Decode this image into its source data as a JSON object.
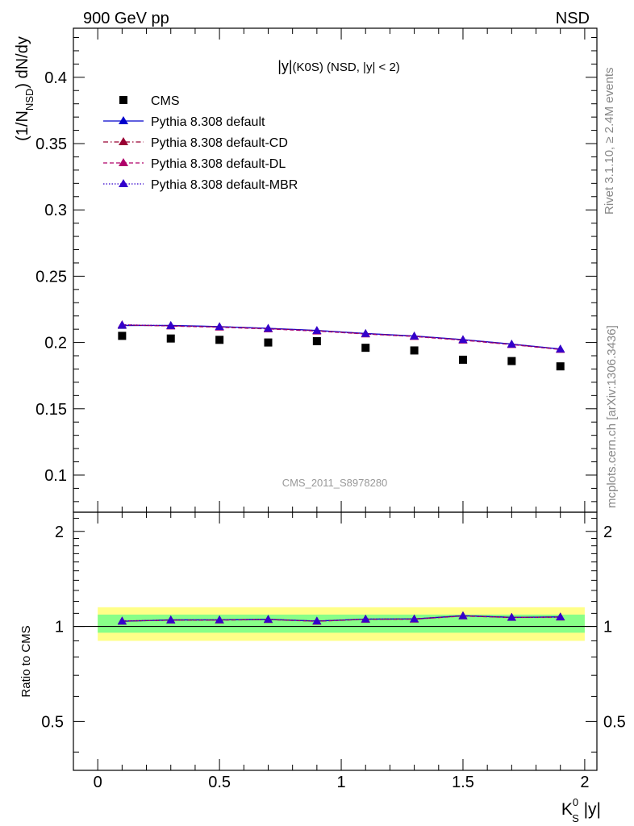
{
  "header": {
    "left": "900 GeV pp",
    "right": "NSD"
  },
  "side_labels": {
    "top": "Rivet 3.1.10, ≥ 2.4M events",
    "bottom": "mcplots.cern.ch [arXiv:1306.3436]"
  },
  "chart_data": [
    {
      "type": "scatter",
      "title_main": "|y|",
      "title_rest": "(K0S) (NSD, |y| < 2)",
      "watermark": "CMS_2011_S8978280",
      "ylabel": "(1/N_NSD) dN/dy",
      "ylabel_parts": {
        "pre": "(1/N",
        "sub": "NSD",
        "post": ") dN/dy"
      },
      "xlim": [
        -0.1,
        2.05
      ],
      "ylim": [
        0.072,
        0.437
      ],
      "yticks": [
        0.1,
        0.15,
        0.2,
        0.25,
        0.3,
        0.35,
        0.4
      ],
      "ytick_labels": [
        "0.1",
        "0.15",
        "0.2",
        "0.25",
        "0.3",
        "0.35",
        "0.4"
      ],
      "legend_position": "top-left",
      "x": [
        0.1,
        0.3,
        0.5,
        0.7,
        0.9,
        1.1,
        1.3,
        1.5,
        1.7,
        1.9
      ],
      "series": [
        {
          "name": "CMS",
          "color": "#000000",
          "marker": "square",
          "line": "none",
          "values": [
            0.205,
            0.203,
            0.202,
            0.2,
            0.201,
            0.196,
            0.194,
            0.187,
            0.186,
            0.182
          ]
        },
        {
          "name": "Pythia 8.308 default",
          "color": "#0000cc",
          "marker": "triangle",
          "line": "solid",
          "values": [
            0.2128,
            0.2129,
            0.212,
            0.2107,
            0.2091,
            0.2068,
            0.2049,
            0.2022,
            0.1988,
            0.1951
          ]
        },
        {
          "name": "Pythia 8.308 default-CD",
          "color": "#990033",
          "marker": "triangle",
          "line": "dashdot",
          "values": [
            0.2131,
            0.2126,
            0.2118,
            0.2105,
            0.2089,
            0.2066,
            0.2047,
            0.202,
            0.1986,
            0.1949
          ]
        },
        {
          "name": "Pythia 8.308 default-DL",
          "color": "#b0006a",
          "marker": "triangle",
          "line": "dashed",
          "values": [
            0.2134,
            0.2124,
            0.2115,
            0.2102,
            0.2086,
            0.2064,
            0.2045,
            0.2017,
            0.1984,
            0.1947
          ]
        },
        {
          "name": "Pythia 8.308 default-MBR",
          "color": "#3300cc",
          "marker": "triangle",
          "line": "dotted",
          "values": [
            0.2133,
            0.2127,
            0.2119,
            0.2106,
            0.209,
            0.2067,
            0.2048,
            0.2021,
            0.1987,
            0.195
          ]
        }
      ]
    },
    {
      "type": "line",
      "ylabel": "Ratio to CMS",
      "xlabel_parts": {
        "main": "K",
        "sup": "0",
        "sub": "S",
        "post": " |y|"
      },
      "xlim": [
        -0.1,
        2.05
      ],
      "ylim": [
        0.35,
        2.3
      ],
      "ylog": true,
      "yticks": [
        0.5,
        1,
        2
      ],
      "ytick_labels": [
        "0.5",
        "1",
        "2"
      ],
      "xticks": [
        0,
        0.5,
        1,
        1.5,
        2
      ],
      "xtick_labels": [
        "0",
        "0.5",
        "1",
        "1.5",
        "2"
      ],
      "reference_line": 1,
      "bands": [
        {
          "color": "#ffff88",
          "low": 0.9,
          "high": 1.15
        },
        {
          "color": "#88ff88",
          "low": 0.955,
          "high": 1.09
        }
      ],
      "x": [
        0.1,
        0.3,
        0.5,
        0.7,
        0.9,
        1.1,
        1.3,
        1.5,
        1.7,
        1.9
      ],
      "series": [
        {
          "name": "Pythia 8.308 default",
          "color": "#0000cc",
          "line": "solid",
          "values": [
            1.038,
            1.049,
            1.049,
            1.053,
            1.04,
            1.055,
            1.056,
            1.081,
            1.069,
            1.072
          ]
        },
        {
          "name": "Pythia 8.308 default-CD",
          "color": "#990033",
          "line": "dashdot",
          "values": [
            1.039,
            1.047,
            1.048,
            1.052,
            1.039,
            1.054,
            1.055,
            1.08,
            1.068,
            1.071
          ]
        },
        {
          "name": "Pythia 8.308 default-DL",
          "color": "#b0006a",
          "line": "dashed",
          "values": [
            1.041,
            1.046,
            1.047,
            1.051,
            1.038,
            1.053,
            1.054,
            1.079,
            1.067,
            1.07
          ]
        },
        {
          "name": "Pythia 8.308 default-MBR",
          "color": "#3300cc",
          "line": "dotted",
          "values": [
            1.04,
            1.048,
            1.049,
            1.053,
            1.04,
            1.055,
            1.056,
            1.081,
            1.068,
            1.071
          ]
        }
      ]
    }
  ]
}
